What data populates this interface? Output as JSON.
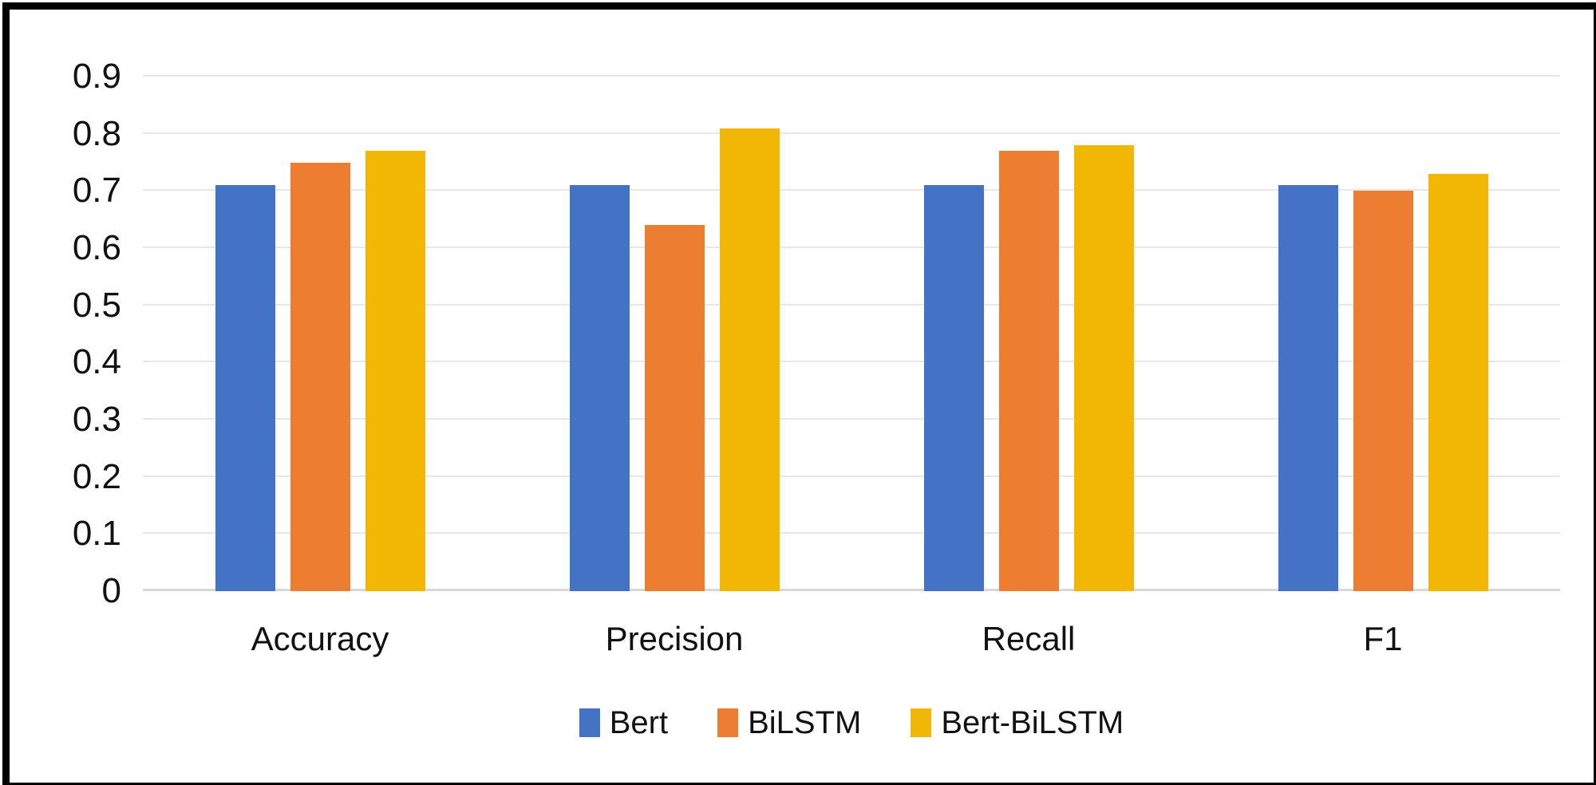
{
  "chart_data": {
    "type": "bar",
    "title": "",
    "xlabel": "",
    "ylabel": "",
    "categories": [
      "Accuracy",
      "Precision",
      "Recall",
      "F1"
    ],
    "series": [
      {
        "name": "Bert",
        "color": "#4472C4",
        "values": [
          0.71,
          0.71,
          0.71,
          0.71
        ]
      },
      {
        "name": "BiLSTM",
        "color": "#ED7D31",
        "values": [
          0.75,
          0.64,
          0.77,
          0.7
        ]
      },
      {
        "name": "Bert-BiLSTM",
        "color": "#F2B705",
        "values": [
          0.77,
          0.81,
          0.78,
          0.73
        ]
      }
    ],
    "ylim": [
      0,
      0.9
    ],
    "ytick_values": [
      0,
      0.1,
      0.2,
      0.3,
      0.4,
      0.5,
      0.6,
      0.7,
      0.8,
      0.9
    ],
    "ytick_labels": [
      "0",
      "0.1",
      "0.2",
      "0.3",
      "0.4",
      "0.5",
      "0.6",
      "0.7",
      "0.8",
      "0.9"
    ],
    "grid": true,
    "legend_position": "bottom"
  },
  "styles": {
    "bar_colors": {
      "bert": "#4472C4",
      "bilstm": "#ED7D31",
      "bert_bilstm": "#F2B705"
    },
    "gridline_color": "#E7E7E7",
    "axis_line_color": "#D8D8D8",
    "text_color": "#111111",
    "frame_border_color": "#000000",
    "background_color": "#FFFFFF"
  }
}
